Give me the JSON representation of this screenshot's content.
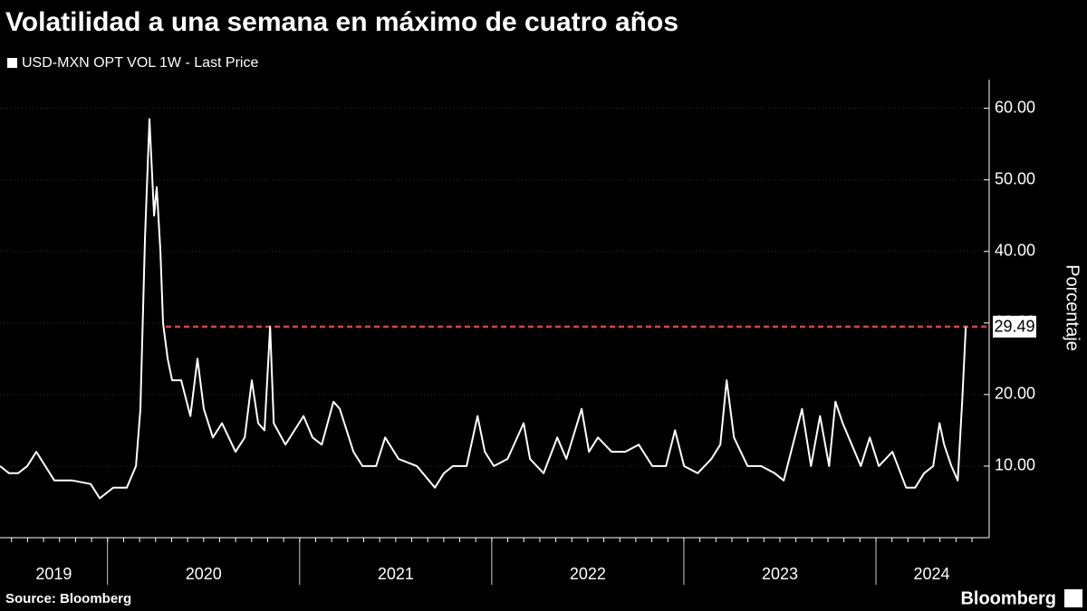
{
  "chart_data": {
    "type": "line",
    "title": "Volatilidad a una semana en máximo de cuatro años",
    "y_axis_label": "Porcentaje",
    "source": "Source: Bloomberg",
    "brand": "Bloomberg",
    "categories": [
      "2019",
      "2020",
      "2021",
      "2022",
      "2023",
      "2024"
    ],
    "xlim": [
      2019.44,
      2024.58
    ],
    "xticks": [
      2020,
      2021,
      2022,
      2023,
      2024
    ],
    "ylim": [
      0,
      64
    ],
    "yticks": [
      {
        "value": 10,
        "label": "10.00"
      },
      {
        "value": 20,
        "label": "20.00"
      },
      {
        "value": 30,
        "label": "30.00"
      },
      {
        "value": 40,
        "label": "40.00"
      },
      {
        "value": 50,
        "label": "50.00"
      },
      {
        "value": 60,
        "label": "60.00"
      }
    ],
    "reference_line": {
      "value": 29.49,
      "color": "#e0413a"
    },
    "series": [
      {
        "name": "USD-MXN OPT VOL 1W - Last Price",
        "color": "#ffffff",
        "x": [
          2019.44,
          2019.487,
          2019.534,
          2019.582,
          2019.629,
          2019.676,
          2019.723,
          2019.817,
          2019.912,
          2019.959,
          2020.03,
          2020.1,
          2020.148,
          2020.171,
          2020.195,
          2020.218,
          2020.242,
          2020.256,
          2020.275,
          2020.289,
          2020.313,
          2020.336,
          2020.383,
          2020.431,
          2020.468,
          2020.501,
          2020.548,
          2020.596,
          2020.666,
          2020.714,
          2020.751,
          2020.784,
          2020.817,
          2020.846,
          2020.865,
          2020.926,
          2020.973,
          2021.02,
          2021.067,
          2021.115,
          2021.176,
          2021.209,
          2021.28,
          2021.327,
          2021.398,
          2021.445,
          2021.515,
          2021.61,
          2021.704,
          2021.751,
          2021.798,
          2021.869,
          2021.926,
          2021.964,
          2022.011,
          2022.082,
          2022.166,
          2022.199,
          2022.27,
          2022.341,
          2022.388,
          2022.468,
          2022.506,
          2022.553,
          2022.624,
          2022.695,
          2022.765,
          2022.836,
          2022.907,
          2022.954,
          2023.001,
          2023.072,
          2023.143,
          2023.19,
          2023.223,
          2023.261,
          2023.332,
          2023.402,
          2023.473,
          2023.52,
          2023.615,
          2023.662,
          2023.709,
          2023.756,
          2023.789,
          2023.827,
          2023.874,
          2023.921,
          2023.968,
          2024.015,
          2024.086,
          2024.157,
          2024.204,
          2024.251,
          2024.298,
          2024.331,
          2024.355,
          2024.393,
          2024.426,
          2024.449,
          2024.468
        ],
        "values": [
          10,
          9,
          9,
          10,
          12,
          10,
          8,
          8,
          7.5,
          5.5,
          7,
          7,
          10,
          18,
          42,
          58.5,
          45,
          49,
          40,
          30,
          25,
          22,
          22,
          17,
          25,
          18,
          14,
          16,
          12,
          14,
          22,
          16,
          15,
          29.5,
          16,
          13,
          15,
          17,
          14,
          13,
          19,
          18,
          12,
          10,
          10,
          14,
          11,
          10,
          7,
          9,
          10,
          10,
          17,
          12,
          10,
          11,
          16,
          11,
          9,
          14,
          11,
          18,
          12,
          14,
          12,
          12,
          13,
          10,
          10,
          15,
          10,
          9,
          11,
          13,
          22,
          14,
          10,
          10,
          9,
          8,
          18,
          10,
          17,
          10,
          19,
          16,
          13,
          10,
          14,
          10,
          12,
          7,
          7,
          9,
          10,
          16,
          13,
          10,
          8,
          19,
          29.49
        ]
      }
    ]
  }
}
